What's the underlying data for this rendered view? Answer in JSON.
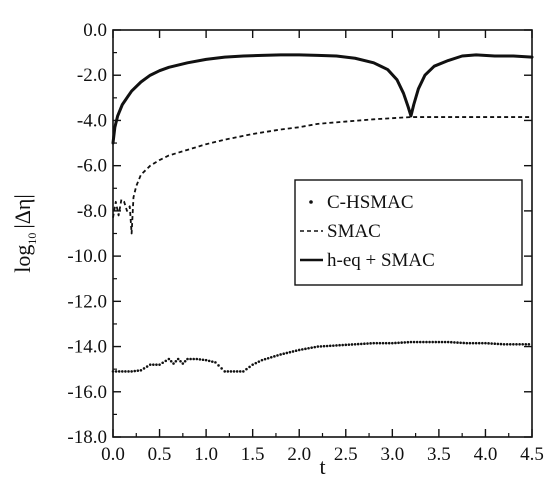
{
  "chart_data": {
    "type": "line",
    "xlabel": "t",
    "ylabel_prefix": "log",
    "ylabel_subscript": "10",
    "ylabel_suffix": "|Δη|",
    "xlim": [
      0,
      4.5
    ],
    "ylim": [
      -18,
      0
    ],
    "xticks": [
      0,
      0.5,
      1.0,
      1.5,
      2.0,
      2.5,
      3.0,
      3.5,
      4.0,
      4.5
    ],
    "xtick_labels": [
      "0.0",
      "0.5",
      "1.0",
      "1.5",
      "2.0",
      "2.5",
      "3.0",
      "3.5",
      "4.0",
      "4.5"
    ],
    "yticks": [
      0,
      -2,
      -4,
      -6,
      -8,
      -10,
      -12,
      -14,
      -16,
      -18
    ],
    "ytick_labels": [
      "0.0",
      "-2.0",
      "-4.0",
      "-6.0",
      "-8.0",
      "-10.0",
      "-12.0",
      "-14.0",
      "-16.0",
      "-18.0"
    ],
    "legend_position": "right-middle",
    "series": [
      {
        "name": "C-HSMAC",
        "style": "dotted",
        "color": "#111111",
        "x": [
          0.0,
          0.1,
          0.2,
          0.3,
          0.4,
          0.5,
          0.6,
          0.65,
          0.7,
          0.75,
          0.8,
          0.9,
          1.0,
          1.1,
          1.2,
          1.3,
          1.4,
          1.5,
          1.6,
          1.8,
          2.0,
          2.2,
          2.4,
          2.6,
          2.8,
          3.0,
          3.2,
          3.4,
          3.6,
          3.8,
          4.0,
          4.2,
          4.5
        ],
        "y": [
          -15.1,
          -15.1,
          -15.1,
          -15.05,
          -14.8,
          -14.8,
          -14.55,
          -14.75,
          -14.55,
          -14.75,
          -14.55,
          -14.55,
          -14.6,
          -14.7,
          -15.1,
          -15.1,
          -15.1,
          -14.8,
          -14.6,
          -14.35,
          -14.15,
          -14.0,
          -13.95,
          -13.9,
          -13.85,
          -13.85,
          -13.8,
          -13.8,
          -13.8,
          -13.85,
          -13.85,
          -13.9,
          -13.9
        ]
      },
      {
        "name": "SMAC",
        "style": "dashed",
        "color": "#111111",
        "x": [
          0.0,
          0.03,
          0.06,
          0.09,
          0.12,
          0.15,
          0.18,
          0.2,
          0.22,
          0.25,
          0.3,
          0.4,
          0.5,
          0.6,
          0.8,
          1.0,
          1.2,
          1.5,
          1.8,
          2.0,
          2.2,
          2.5,
          2.8,
          3.0,
          3.2,
          3.5,
          3.8,
          4.0,
          4.2,
          4.5
        ],
        "y": [
          -8.3,
          -7.6,
          -8.2,
          -7.5,
          -7.6,
          -8.0,
          -7.8,
          -9.0,
          -7.4,
          -6.9,
          -6.4,
          -6.0,
          -5.75,
          -5.55,
          -5.3,
          -5.05,
          -4.85,
          -4.6,
          -4.4,
          -4.3,
          -4.15,
          -4.05,
          -3.95,
          -3.9,
          -3.85,
          -3.85,
          -3.85,
          -3.85,
          -3.85,
          -3.85
        ]
      },
      {
        "name": "h-eq + SMAC",
        "style": "solid",
        "color": "#111111",
        "x": [
          0.0,
          0.02,
          0.05,
          0.1,
          0.2,
          0.3,
          0.4,
          0.5,
          0.6,
          0.8,
          1.0,
          1.2,
          1.4,
          1.6,
          1.8,
          2.0,
          2.2,
          2.4,
          2.6,
          2.8,
          2.95,
          3.05,
          3.12,
          3.17,
          3.2,
          3.23,
          3.28,
          3.35,
          3.45,
          3.6,
          3.75,
          3.9,
          4.1,
          4.3,
          4.5
        ],
        "y": [
          -5.0,
          -4.3,
          -3.8,
          -3.3,
          -2.7,
          -2.3,
          -2.0,
          -1.8,
          -1.65,
          -1.45,
          -1.3,
          -1.2,
          -1.15,
          -1.12,
          -1.1,
          -1.1,
          -1.12,
          -1.15,
          -1.25,
          -1.45,
          -1.75,
          -2.2,
          -2.8,
          -3.4,
          -3.8,
          -3.3,
          -2.6,
          -2.0,
          -1.6,
          -1.35,
          -1.15,
          -1.1,
          -1.15,
          -1.15,
          -1.2
        ]
      }
    ]
  }
}
